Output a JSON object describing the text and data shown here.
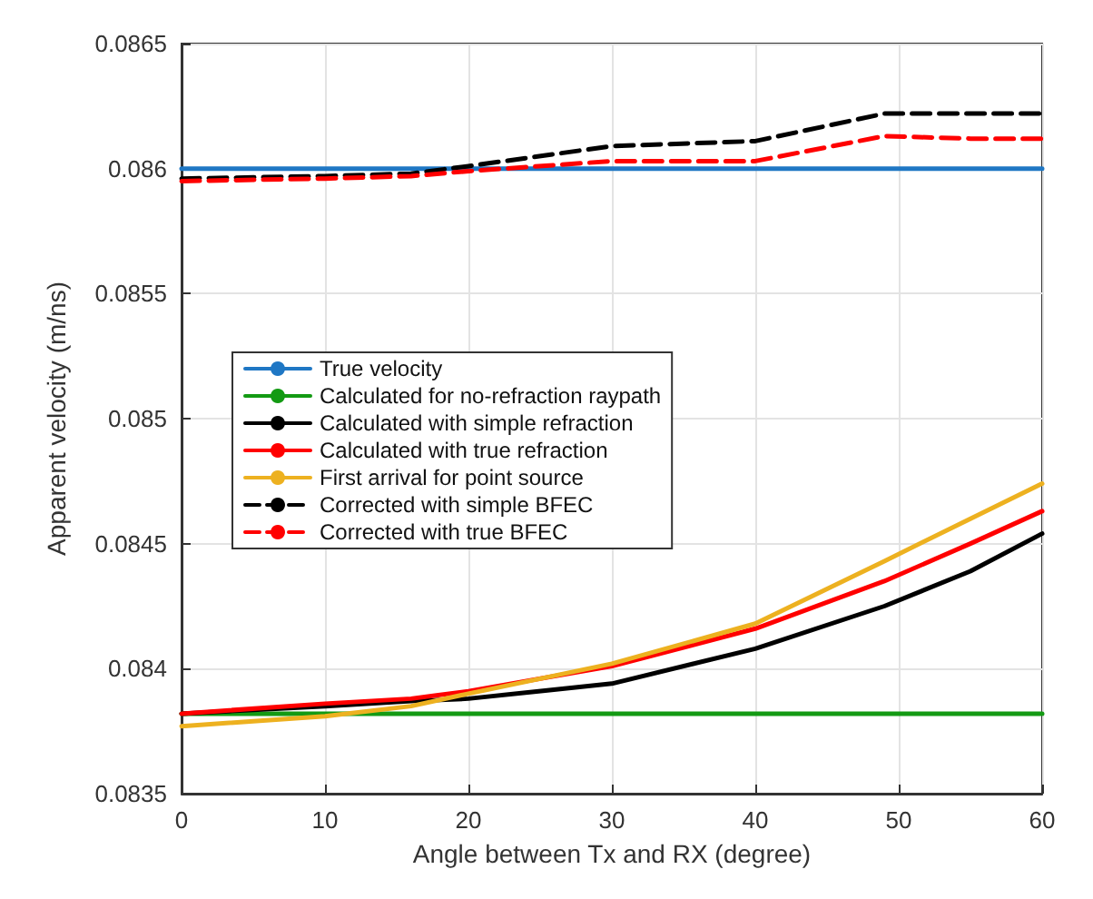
{
  "chart_data": {
    "type": "line",
    "xlabel": "Angle between Tx and RX (degree)",
    "ylabel": "Apparent velocity (m/ns)",
    "x": [
      0,
      10,
      16,
      20,
      30,
      40,
      49,
      55,
      60
    ],
    "series": [
      {
        "name": "True velocity",
        "color": "#1f77c4",
        "values": [
          0.086,
          0.086,
          0.086,
          0.086,
          0.086,
          0.086,
          0.086,
          0.086,
          0.086
        ]
      },
      {
        "name": "Calculated for no-refraction raypath",
        "color": "#139a13",
        "values": [
          0.08382,
          0.08382,
          0.08382,
          0.08382,
          0.08382,
          0.08382,
          0.08382,
          0.08382,
          0.08382
        ]
      },
      {
        "name": "Calculated with simple refraction",
        "color": "#000000",
        "values": [
          0.08382,
          0.08385,
          0.08387,
          0.08388,
          0.08394,
          0.08408,
          0.08425,
          0.08439,
          0.08454
        ]
      },
      {
        "name": "Calculated with true refraction",
        "color": "#ff0000",
        "values": [
          0.08382,
          0.08386,
          0.08388,
          0.08391,
          0.08401,
          0.08416,
          0.08435,
          0.0845,
          0.08463
        ]
      },
      {
        "name": "First arrival for point source",
        "color": "#edb120",
        "values": [
          0.08377,
          0.08381,
          0.08385,
          0.0839,
          0.08402,
          0.08418,
          0.08443,
          0.0846,
          0.08474
        ]
      },
      {
        "name": "Corrected with simple BFEC",
        "color": "#000000",
        "line_style": "dashed",
        "values": [
          0.08596,
          0.08597,
          0.08598,
          0.08601,
          0.08609,
          0.08611,
          0.08622,
          0.08622,
          0.08622
        ]
      },
      {
        "name": "Corrected with true BFEC",
        "color": "#ff0000",
        "line_style": "dashed",
        "values": [
          0.08595,
          0.08596,
          0.08597,
          0.08599,
          0.08603,
          0.08603,
          0.08613,
          0.08612,
          0.08612
        ]
      }
    ],
    "xlim": [
      0,
      60
    ],
    "xticks": [
      0,
      10,
      20,
      30,
      40,
      50,
      60
    ],
    "ylim": [
      0.0835,
      0.0865
    ],
    "yticks": [
      0.0835,
      0.084,
      0.0845,
      0.085,
      0.0855,
      0.086,
      0.0865
    ],
    "grid": true,
    "legend": "left",
    "marker": "none",
    "line_style": "solid"
  }
}
